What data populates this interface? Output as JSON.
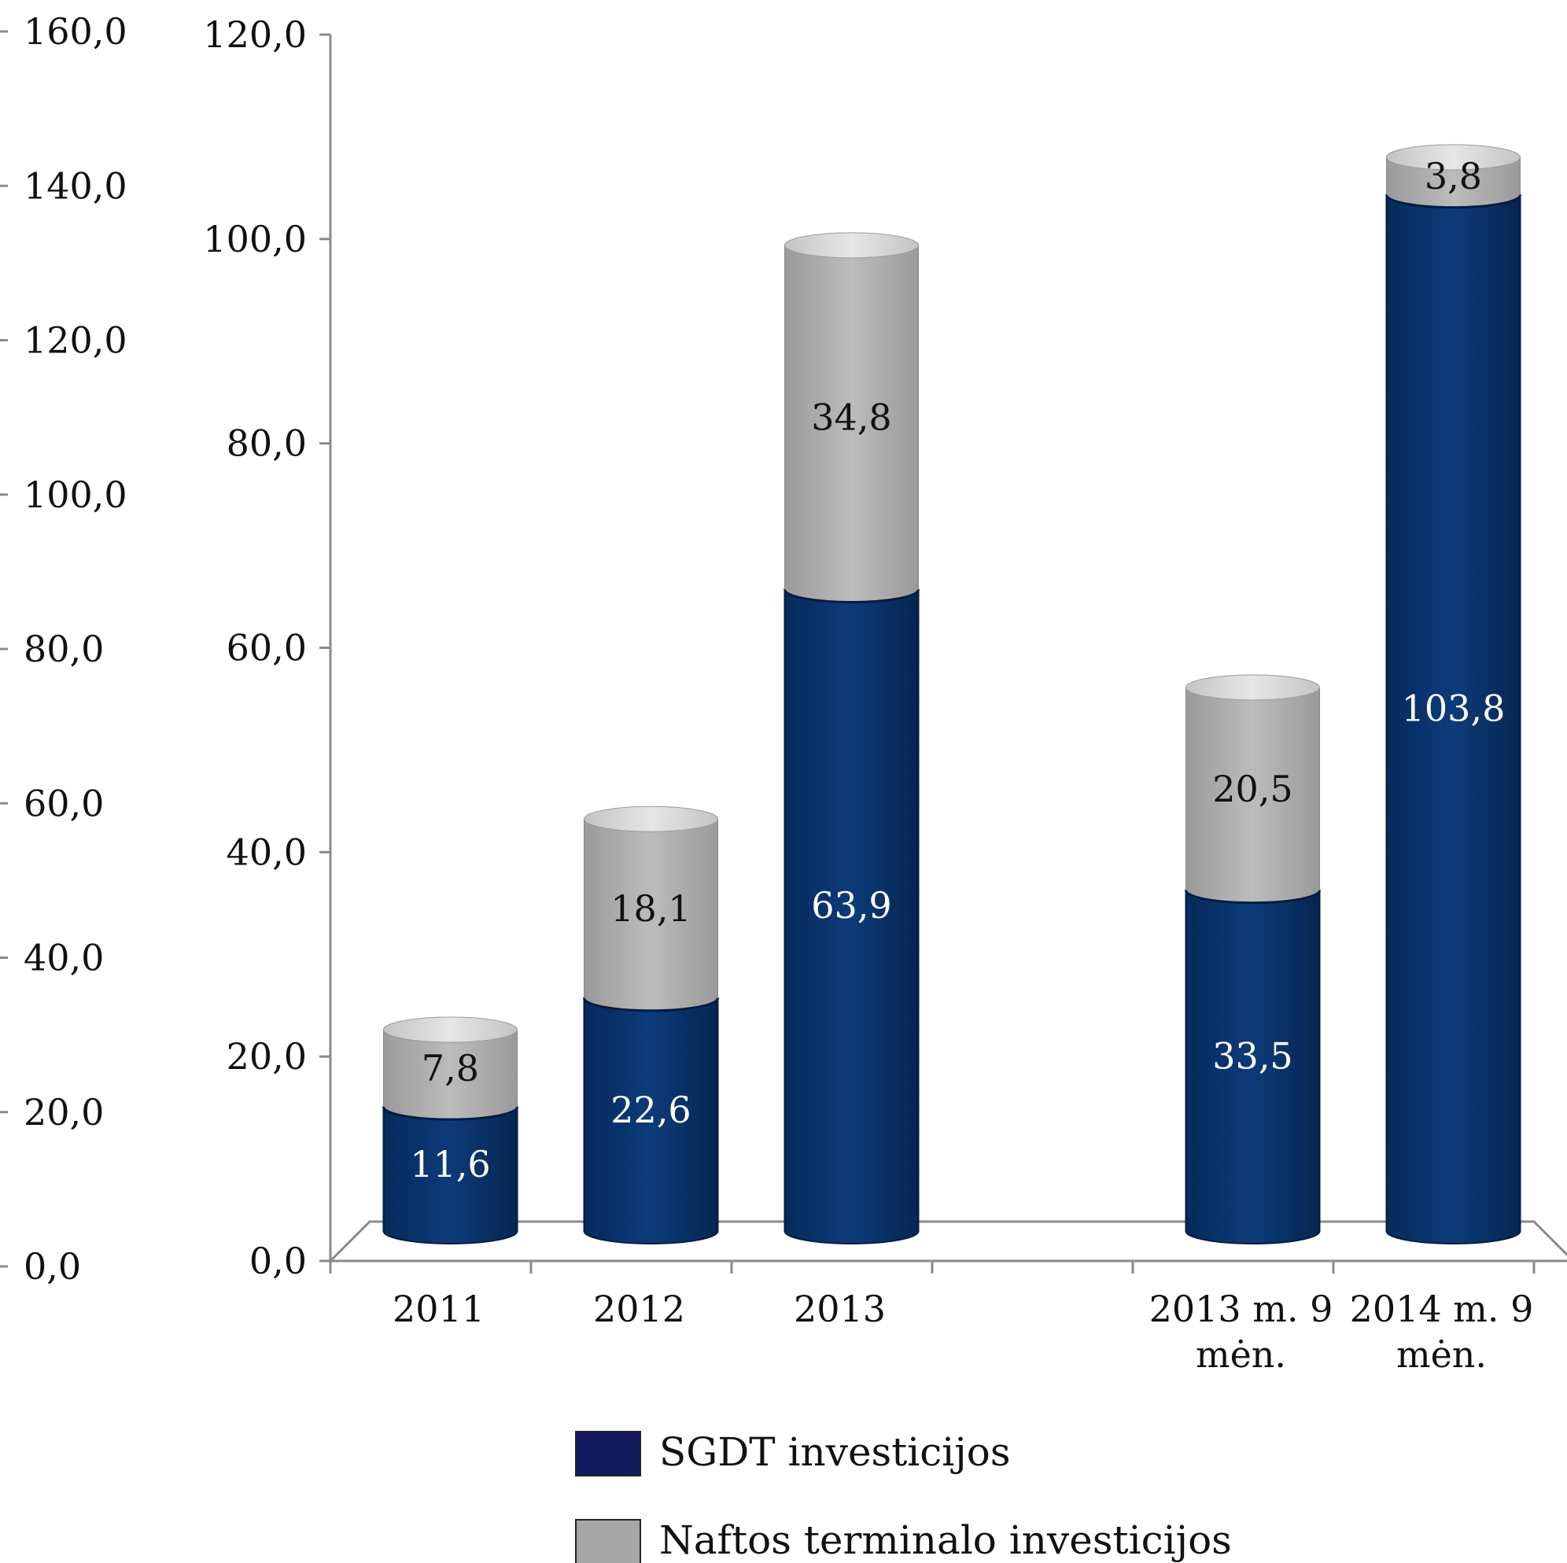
{
  "chart_data": {
    "type": "bar",
    "stacked": true,
    "style": "3d-cylinder",
    "categories": [
      [
        "2011"
      ],
      [
        "2012"
      ],
      [
        "2013"
      ],
      [
        ""
      ],
      [
        "2013 m. 9",
        "mėn."
      ],
      [
        "2014 m. 9",
        "mėn."
      ]
    ],
    "series": [
      {
        "name": "SGDT investicijos",
        "color": "#0a3470",
        "values": [
          11.6,
          22.6,
          63.9,
          null,
          33.5,
          103.8
        ],
        "labels": [
          "11,6",
          "22,6",
          "63,9",
          "",
          "33,5",
          "103,8"
        ]
      },
      {
        "name": "Naftos terminalo investicijos",
        "color": "#a6a6a6",
        "values": [
          7.8,
          18.1,
          34.8,
          null,
          20.5,
          3.8
        ],
        "labels": [
          "7,8",
          "18,1",
          "34,8",
          "",
          "20,5",
          "3,8"
        ]
      }
    ],
    "primary_axis": {
      "ylim": [
        0,
        120
      ],
      "ticks": [
        "0,0",
        "20,0",
        "40,0",
        "60,0",
        "80,0",
        "100,0",
        "120,0"
      ]
    },
    "secondary_axis": {
      "ylim": [
        0,
        160
      ],
      "ticks": [
        "0,0",
        "20,0",
        "40,0",
        "60,0",
        "80,0",
        "100,0",
        "120,0",
        "140,0",
        "160,0"
      ]
    },
    "legend": {
      "position": "bottom",
      "items": [
        {
          "label": "SGDT investicijos",
          "color": "#141a5e"
        },
        {
          "label": "Naftos terminalo investicijos",
          "color": "#a6a6a6"
        }
      ]
    },
    "grid": false
  }
}
